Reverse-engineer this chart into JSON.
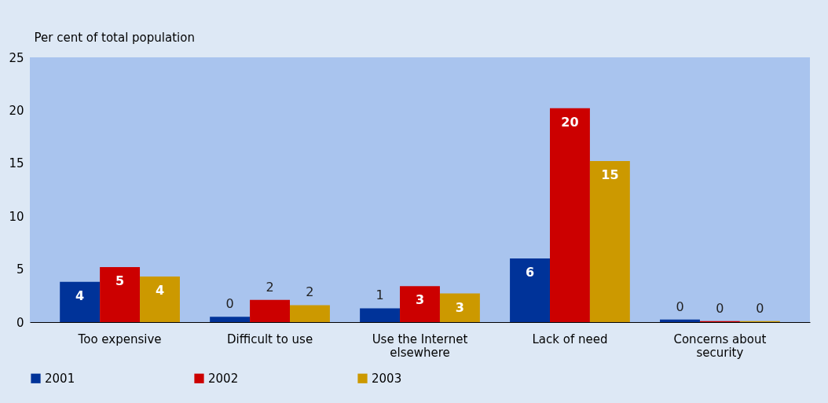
{
  "chart_data": {
    "type": "bar",
    "ylabel": "Per cent of total population",
    "categories": [
      "Too expensive",
      "Difficult to use",
      "Use the Internet elsewhere",
      "Lack of need",
      "Concerns about security"
    ],
    "series": [
      {
        "name": "2001",
        "color": "#003399",
        "values": [
          3.8,
          0.5,
          1.3,
          6.0,
          0.25
        ],
        "value_labels": [
          "4",
          "0",
          "1",
          "6",
          "0"
        ]
      },
      {
        "name": "2002",
        "color": "#cc0000",
        "values": [
          5.2,
          2.1,
          3.4,
          20.2,
          0.1
        ],
        "value_labels": [
          "5",
          "2",
          "3",
          "20",
          "0"
        ]
      },
      {
        "name": "2003",
        "color": "#cc9900",
        "values": [
          4.3,
          1.6,
          2.7,
          15.2,
          0.1
        ],
        "value_labels": [
          "4",
          "2",
          "3",
          "15",
          "0"
        ]
      }
    ],
    "ylim": [
      0,
      25
    ],
    "yticks": [
      0,
      5,
      10,
      15,
      20,
      25
    ],
    "grid": false,
    "legend": "bottom"
  }
}
